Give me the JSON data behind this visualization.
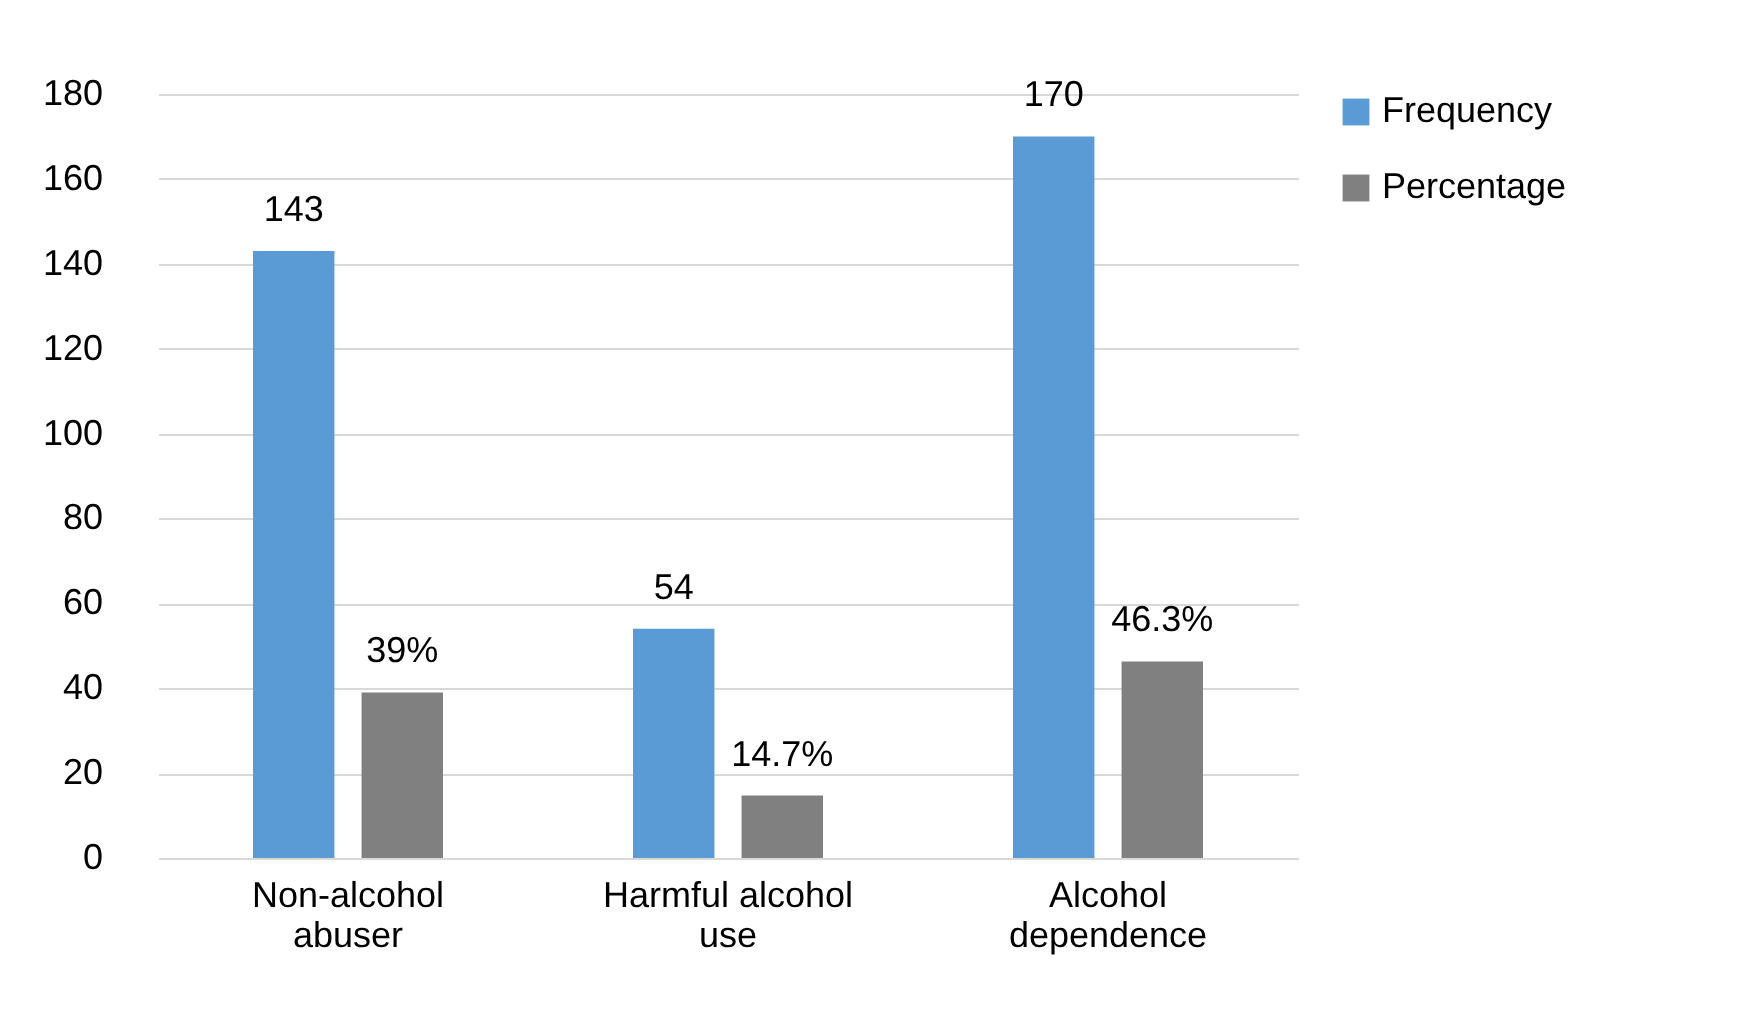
{
  "chart_data": {
    "type": "bar",
    "categories": [
      "Non-alcohol abuser",
      "Harmful alcohol use",
      "Alcohol dependence"
    ],
    "series": [
      {
        "name": "Frequency",
        "color": "#5b9bd5",
        "values": [
          143,
          54,
          170
        ],
        "value_labels": [
          "143",
          "54",
          "170"
        ]
      },
      {
        "name": "Percentage",
        "color": "#808080",
        "values": [
          39,
          14.7,
          46.3
        ],
        "value_labels": [
          "39%",
          "14.7%",
          "46.3%"
        ]
      }
    ],
    "ylim": [
      0,
      180
    ],
    "yticks": [
      0,
      20,
      40,
      60,
      80,
      100,
      120,
      140,
      160,
      180
    ],
    "grid": "y",
    "legend": "right"
  }
}
